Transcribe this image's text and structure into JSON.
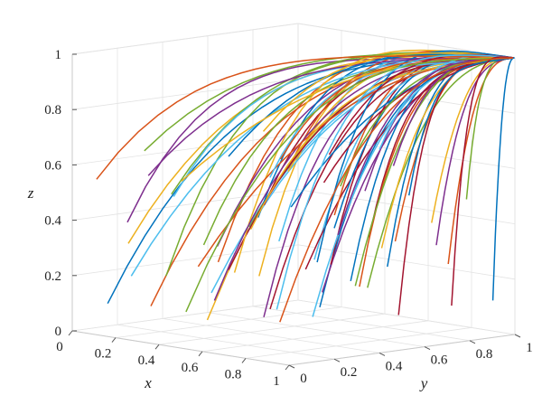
{
  "chart_data": {
    "type": "line",
    "projection": "3d",
    "xlabel": "x",
    "ylabel": "y",
    "zlabel": "z",
    "xlim": [
      0,
      1
    ],
    "ylim": [
      0,
      1
    ],
    "zlim": [
      0,
      1
    ],
    "x_ticks": [
      "0",
      "0.2",
      "0.4",
      "0.6",
      "0.8",
      "1"
    ],
    "y_ticks": [
      "0",
      "0.2",
      "0.4",
      "0.6",
      "0.8",
      "1"
    ],
    "z_ticks": [
      "0",
      "0.2",
      "0.4",
      "0.6",
      "0.8",
      "1"
    ],
    "grid": true,
    "series_colors": [
      "#0072BD",
      "#D95319",
      "#EDB120",
      "#7E2F8E",
      "#77AC30",
      "#4DBEEE",
      "#A2142F"
    ],
    "curve_family": "trajectories converging to the point (1, 1, 1)",
    "attractor": [
      1,
      1,
      1
    ],
    "series": [
      {
        "start": [
          0.08,
          0.08,
          0.1
        ]
      },
      {
        "start": [
          0.3,
          0.06,
          0.12
        ]
      },
      {
        "start": [
          0.55,
          0.07,
          0.1
        ]
      },
      {
        "start": [
          0.8,
          0.08,
          0.14
        ]
      },
      {
        "start": [
          0.12,
          0.3,
          0.18
        ]
      },
      {
        "start": [
          0.35,
          0.28,
          0.15
        ]
      },
      {
        "start": [
          0.6,
          0.3,
          0.12
        ]
      },
      {
        "start": [
          0.85,
          0.28,
          0.16
        ]
      },
      {
        "start": [
          0.1,
          0.55,
          0.2
        ]
      },
      {
        "start": [
          0.32,
          0.52,
          0.18
        ]
      },
      {
        "start": [
          0.58,
          0.55,
          0.15
        ]
      },
      {
        "start": [
          0.82,
          0.52,
          0.2
        ]
      },
      {
        "start": [
          0.12,
          0.8,
          0.25
        ]
      },
      {
        "start": [
          0.38,
          0.78,
          0.2
        ]
      },
      {
        "start": [
          0.62,
          0.8,
          0.22
        ]
      },
      {
        "start": [
          0.88,
          0.82,
          0.26
        ]
      },
      {
        "start": [
          0.05,
          0.2,
          0.3
        ]
      },
      {
        "start": [
          0.2,
          0.45,
          0.28
        ]
      },
      {
        "start": [
          0.45,
          0.15,
          0.35
        ]
      },
      {
        "start": [
          0.7,
          0.4,
          0.3
        ]
      },
      {
        "start": [
          0.92,
          0.15,
          0.32
        ]
      },
      {
        "start": [
          0.25,
          0.92,
          0.3
        ]
      },
      {
        "start": [
          0.5,
          0.95,
          0.28
        ]
      },
      {
        "start": [
          0.75,
          0.65,
          0.32
        ]
      },
      {
        "start": [
          0.15,
          0.1,
          0.4
        ]
      },
      {
        "start": [
          0.4,
          0.4,
          0.38
        ]
      },
      {
        "start": [
          0.65,
          0.15,
          0.42
        ]
      },
      {
        "start": [
          0.9,
          0.45,
          0.4
        ]
      },
      {
        "start": [
          0.18,
          0.65,
          0.36
        ]
      },
      {
        "start": [
          0.48,
          0.7,
          0.4
        ]
      },
      {
        "start": [
          0.72,
          0.9,
          0.38
        ]
      },
      {
        "start": [
          0.95,
          0.7,
          0.35
        ]
      },
      {
        "start": [
          0.02,
          0.42,
          0.45
        ]
      },
      {
        "start": [
          0.28,
          0.18,
          0.5
        ]
      },
      {
        "start": [
          0.52,
          0.35,
          0.48
        ]
      },
      {
        "start": [
          0.78,
          0.22,
          0.52
        ]
      },
      {
        "start": [
          0.08,
          0.88,
          0.5
        ]
      },
      {
        "start": [
          0.35,
          0.62,
          0.55
        ]
      },
      {
        "start": [
          0.6,
          0.72,
          0.5
        ]
      },
      {
        "start": [
          0.86,
          0.92,
          0.48
        ]
      },
      {
        "start": [
          0.22,
          0.05,
          0.22
        ]
      },
      {
        "start": [
          0.46,
          0.25,
          0.25
        ]
      },
      {
        "start": [
          0.68,
          0.58,
          0.2
        ]
      },
      {
        "start": [
          0.96,
          0.35,
          0.24
        ]
      },
      {
        "start": [
          0.04,
          0.68,
          0.14
        ]
      },
      {
        "start": [
          0.26,
          0.38,
          0.1
        ]
      },
      {
        "start": [
          0.42,
          0.85,
          0.12
        ]
      },
      {
        "start": [
          0.64,
          0.45,
          0.08
        ]
      },
      {
        "start": [
          0.88,
          0.6,
          0.1
        ]
      },
      {
        "start": [
          0.14,
          0.95,
          0.16
        ]
      },
      {
        "start": [
          0.56,
          0.02,
          0.3
        ]
      },
      {
        "start": [
          0.74,
          0.08,
          0.45
        ]
      },
      {
        "start": [
          0.33,
          0.02,
          0.6
        ]
      },
      {
        "start": [
          0.02,
          0.3,
          0.62
        ]
      },
      {
        "start": [
          0.62,
          0.28,
          0.6
        ]
      },
      {
        "start": [
          0.9,
          0.25,
          0.62
        ]
      },
      {
        "start": [
          0.2,
          0.5,
          0.6
        ]
      },
      {
        "start": [
          0.44,
          0.5,
          0.62
        ]
      },
      {
        "start": [
          0.1,
          0.75,
          0.65
        ]
      },
      {
        "start": [
          0.7,
          0.75,
          0.6
        ]
      },
      {
        "start": [
          0.82,
          0.4,
          0.58
        ]
      },
      {
        "start": [
          0.5,
          0.88,
          0.62
        ]
      },
      {
        "start": [
          0.3,
          0.85,
          0.58
        ]
      },
      {
        "start": [
          0.98,
          0.55,
          0.55
        ]
      },
      {
        "start": [
          0.06,
          0.05,
          0.55
        ]
      },
      {
        "start": [
          0.4,
          0.1,
          0.58
        ]
      },
      {
        "start": [
          0.58,
          0.62,
          0.35
        ]
      },
      {
        "start": [
          0.16,
          0.35,
          0.05
        ]
      },
      {
        "start": [
          0.36,
          0.56,
          0.06
        ]
      },
      {
        "start": [
          0.76,
          0.95,
          0.08
        ]
      },
      {
        "start": [
          0.94,
          0.96,
          0.12
        ]
      },
      {
        "start": [
          0.52,
          0.42,
          0.05
        ]
      }
    ]
  }
}
